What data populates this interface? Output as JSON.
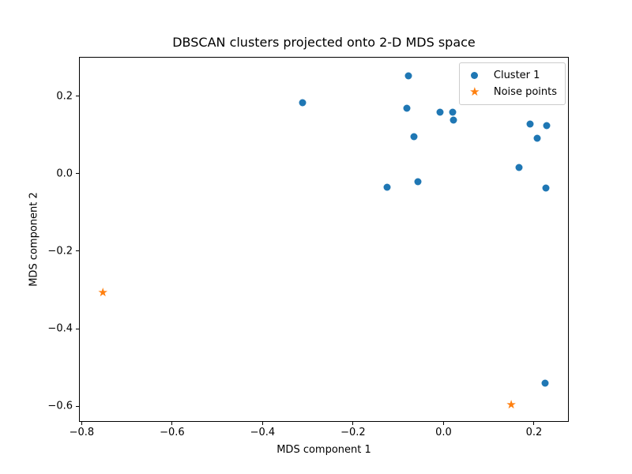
{
  "chart_data": {
    "type": "scatter",
    "title": "DBSCAN clusters projected onto 2-D MDS space",
    "xlabel": "MDS component 1",
    "ylabel": "MDS component 2",
    "xlim": [
      -0.806,
      0.277
    ],
    "ylim": [
      -0.64,
      0.301
    ],
    "grid": false,
    "x_ticks": {
      "values": [
        -0.8,
        -0.6,
        -0.4,
        -0.2,
        0.0,
        0.2
      ],
      "labels": [
        "−0.8",
        "−0.6",
        "−0.4",
        "−0.2",
        "0.0",
        "0.2"
      ]
    },
    "y_ticks": {
      "values": [
        0.2,
        0.0,
        -0.2,
        -0.4,
        -0.6
      ],
      "labels": [
        "0.2",
        "0.0",
        "−0.2",
        "−0.4",
        "−0.6"
      ]
    },
    "legend": {
      "position": "upper right",
      "entries": [
        {
          "label": "Cluster 1",
          "marker": "circle",
          "color": "#1f77b4"
        },
        {
          "label": "Noise points",
          "marker": "star",
          "color": "#ff7f0e"
        }
      ]
    },
    "series": [
      {
        "name": "Cluster 1",
        "marker": "circle",
        "color": "#1f77b4",
        "points": [
          [
            -0.313,
            0.185
          ],
          [
            -0.079,
            0.255
          ],
          [
            -0.082,
            0.17
          ],
          [
            -0.01,
            0.161
          ],
          [
            0.018,
            0.16
          ],
          [
            0.02,
            0.141
          ],
          [
            -0.067,
            0.098
          ],
          [
            0.189,
            0.129
          ],
          [
            0.227,
            0.126
          ],
          [
            0.205,
            0.094
          ],
          [
            -0.127,
            -0.033
          ],
          [
            -0.059,
            -0.019
          ],
          [
            0.166,
            0.017
          ],
          [
            0.224,
            -0.035
          ],
          [
            0.223,
            -0.538
          ]
        ]
      },
      {
        "name": "Noise points",
        "marker": "star",
        "color": "#ff7f0e",
        "points": [
          [
            -0.755,
            -0.305
          ],
          [
            0.148,
            -0.596
          ]
        ]
      }
    ]
  }
}
